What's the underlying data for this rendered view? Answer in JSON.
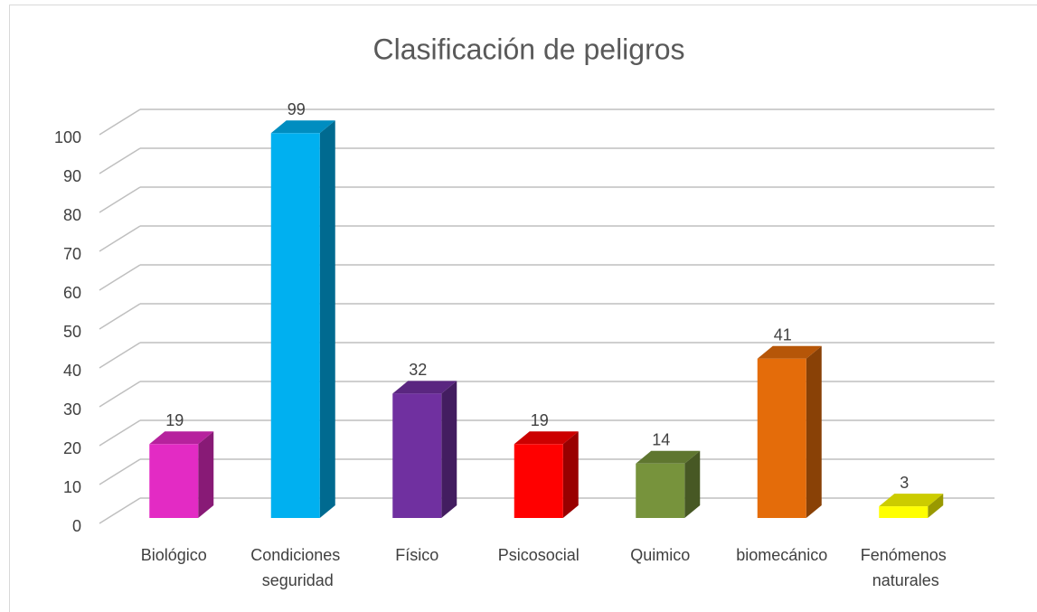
{
  "chart_data": {
    "type": "bar3d",
    "title": "Clasificación de peligros",
    "categories": [
      "Biológico",
      "Condiciones seguridad",
      "Físico",
      "Psicosocial",
      "Quimico",
      "biomecánico",
      "Fenómenos naturales"
    ],
    "values": [
      19,
      99,
      32,
      19,
      14,
      41,
      3
    ],
    "colors": [
      "#e32bc4",
      "#00b0f0",
      "#7030a0",
      "#ff0000",
      "#77933c",
      "#e46c0a",
      "#ffff00"
    ],
    "ylim": [
      0,
      100
    ],
    "yticks": [
      0,
      10,
      20,
      30,
      40,
      50,
      60,
      70,
      80,
      90,
      100
    ],
    "grid": true
  }
}
